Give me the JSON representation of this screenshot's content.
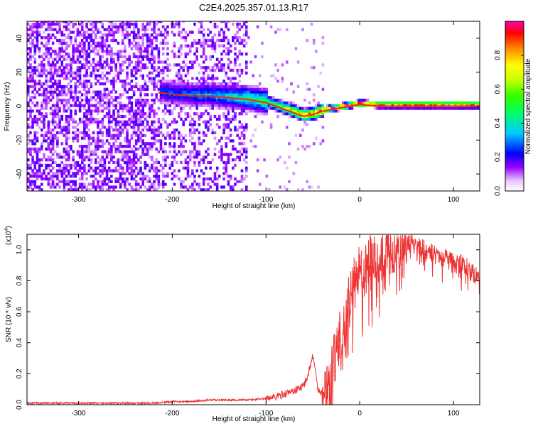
{
  "title": "C2E4.2025.357.01.13.R17",
  "chart_data": [
    {
      "type": "heatmap",
      "name": "spectrogram",
      "xlabel": "Height of straight line (km)",
      "ylabel": "Frequency (Hz)",
      "xlim": [
        -355,
        128
      ],
      "ylim": [
        -50,
        50
      ],
      "xticks": [
        -300,
        -200,
        -100,
        0,
        100
      ],
      "yticks": [
        -40,
        -20,
        0,
        20,
        40
      ],
      "colorbar": {
        "label": "Normalized spectral amplitude",
        "range": [
          0.0,
          1.0
        ],
        "ticks": [
          0.0,
          0.2,
          0.4,
          0.6,
          0.8
        ],
        "tick_labels": [
          "0.0",
          "0.2",
          "0.4",
          "0.6",
          "0.8"
        ]
      },
      "ridge": {
        "x": [
          -215,
          -200,
          -180,
          -160,
          -140,
          -120,
          -100,
          -90,
          -80,
          -70,
          -60,
          -50,
          -40,
          -30,
          -20,
          -10,
          0,
          20,
          40,
          60,
          80,
          100,
          128
        ],
        "freq": [
          8,
          7,
          6,
          6,
          5,
          4,
          2,
          0,
          -2,
          -4,
          -6,
          -5,
          -3,
          -2,
          -1,
          0,
          1,
          0,
          0,
          0,
          0,
          0,
          0
        ],
        "amplitude": [
          0.25,
          0.28,
          0.3,
          0.32,
          0.38,
          0.45,
          0.5,
          0.55,
          0.65,
          0.75,
          0.85,
          0.9,
          0.95,
          0.97,
          0.98,
          0.99,
          1.0,
          1.0,
          1.0,
          1.0,
          1.0,
          1.0,
          1.0
        ]
      }
    },
    {
      "type": "line",
      "name": "snr",
      "xlabel": "Height of straight line (km)",
      "ylabel": "SNR (10 * v/v)",
      "scale_note": "(x10",
      "scale_exp": "4",
      "scale_close": ")",
      "xlim": [
        -355,
        128
      ],
      "ylim": [
        0,
        1.1
      ],
      "xticks": [
        -300,
        -200,
        -100,
        0,
        100
      ],
      "yticks": [
        0.0,
        0.2,
        0.4,
        0.6,
        0.8,
        1.0
      ],
      "ytick_labels": [
        "0.0",
        "0.2",
        "0.4",
        "0.6",
        "0.8",
        "1.0"
      ],
      "color": "#ee3333",
      "series": [
        {
          "name": "SNR",
          "x": [
            -355,
            -300,
            -250,
            -220,
            -200,
            -180,
            -160,
            -140,
            -120,
            -100,
            -90,
            -80,
            -70,
            -60,
            -55,
            -50,
            -48,
            -45,
            -40,
            -35,
            -30,
            -25,
            -20,
            -15,
            -10,
            -5,
            0,
            10,
            20,
            30,
            40,
            50,
            60,
            70,
            80,
            90,
            100,
            110,
            120,
            128
          ],
          "y": [
            0.01,
            0.01,
            0.01,
            0.01,
            0.02,
            0.02,
            0.03,
            0.03,
            0.03,
            0.04,
            0.05,
            0.07,
            0.09,
            0.12,
            0.2,
            0.32,
            0.25,
            0.1,
            0.08,
            0.1,
            0.2,
            0.35,
            0.48,
            0.58,
            0.72,
            0.82,
            0.85,
            0.92,
            0.96,
            0.98,
            1.02,
            1.05,
            1.03,
            1.0,
            0.97,
            0.95,
            0.92,
            0.9,
            0.86,
            0.82
          ]
        }
      ]
    }
  ]
}
